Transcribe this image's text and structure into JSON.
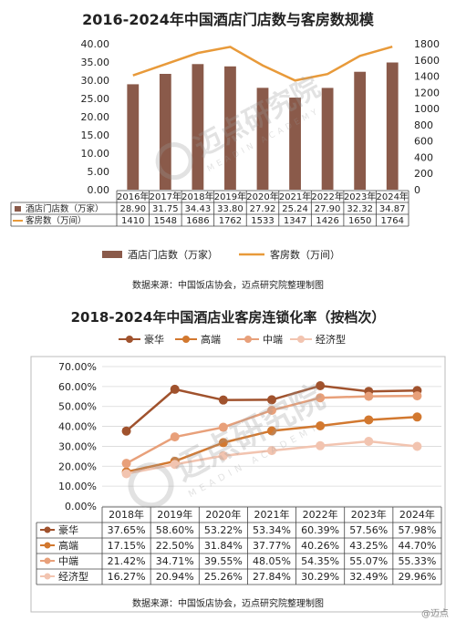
{
  "chart1": {
    "title": "2016-2024年中国酒店门店数与客房数规模",
    "categories": [
      "2016年",
      "2017年",
      "2018年",
      "2019年",
      "2020年",
      "2021年",
      "2022年",
      "2023年",
      "2024年"
    ],
    "y_left": {
      "min": 0,
      "max": 40,
      "ticks": [
        "0.00",
        "5.00",
        "10.00",
        "15.00",
        "20.00",
        "25.00",
        "30.00",
        "35.00",
        "40.00"
      ]
    },
    "y_right": {
      "min": 0,
      "max": 1800,
      "ticks": [
        "0",
        "200",
        "400",
        "600",
        "800",
        "1000",
        "1200",
        "1400",
        "1600",
        "1800"
      ]
    },
    "series": [
      {
        "name": "酒店门店数（万家）",
        "type": "bar",
        "axis": "left",
        "color": "#8a5a4a",
        "values": [
          28.9,
          31.75,
          34.43,
          33.8,
          27.92,
          25.24,
          27.9,
          32.32,
          34.87
        ],
        "labels": [
          "28.90",
          "31.75",
          "34.43",
          "33.80",
          "27.92",
          "25.24",
          "27.90",
          "32.32",
          "34.87"
        ]
      },
      {
        "name": "客房数（万间）",
        "type": "line",
        "axis": "right",
        "color": "#e89a3a",
        "values": [
          1410,
          1548,
          1686,
          1762,
          1533,
          1347,
          1426,
          1650,
          1764
        ],
        "labels": [
          "1410",
          "1548",
          "1686",
          "1762",
          "1533",
          "1347",
          "1426",
          "1650",
          "1764"
        ]
      }
    ],
    "legend": [
      "酒店门店数（万家）",
      "客房数（万间）"
    ],
    "source": "数据来源：中国饭店协会，迈点研究院整理制图"
  },
  "chart2": {
    "title": "2018-2024年中国酒店业客房连锁化率（按档次）",
    "categories": [
      "2018年",
      "2019年",
      "2020年",
      "2021年",
      "2022年",
      "2023年",
      "2024年"
    ],
    "y_axis": {
      "min": 0,
      "max": 70,
      "ticks": [
        "0.00%",
        "10.00%",
        "20.00%",
        "30.00%",
        "40.00%",
        "50.00%",
        "60.00%",
        "70.00%"
      ]
    },
    "series": [
      {
        "name": "豪华",
        "color": "#a0522d",
        "values": [
          37.65,
          58.6,
          53.22,
          53.34,
          60.39,
          57.56,
          57.98
        ],
        "labels": [
          "37.65%",
          "58.60%",
          "53.22%",
          "53.34%",
          "60.39%",
          "57.56%",
          "57.98%"
        ]
      },
      {
        "name": "高端",
        "color": "#d2782f",
        "values": [
          17.15,
          22.5,
          31.84,
          37.77,
          40.26,
          43.25,
          44.7
        ],
        "labels": [
          "17.15%",
          "22.50%",
          "31.84%",
          "37.77%",
          "40.26%",
          "43.25%",
          "44.70%"
        ]
      },
      {
        "name": "中端",
        "color": "#e8a07a",
        "values": [
          21.42,
          34.71,
          39.55,
          48.05,
          54.35,
          55.07,
          55.33
        ],
        "labels": [
          "21.42%",
          "34.71%",
          "39.55%",
          "48.05%",
          "54.35%",
          "55.07%",
          "55.33%"
        ]
      },
      {
        "name": "经济型",
        "color": "#f2c4b0",
        "values": [
          16.27,
          20.94,
          25.26,
          27.84,
          30.29,
          32.49,
          29.96
        ],
        "labels": [
          "16.27%",
          "20.94%",
          "25.26%",
          "27.84%",
          "30.29%",
          "32.49%",
          "29.96%"
        ]
      }
    ],
    "source": "数据来源：中国饭店协会，迈点研究院整理制图"
  },
  "watermark": {
    "text": "迈点研究院",
    "sub": "MEADIN ACADEMY"
  },
  "corner_mark": "@迈点"
}
